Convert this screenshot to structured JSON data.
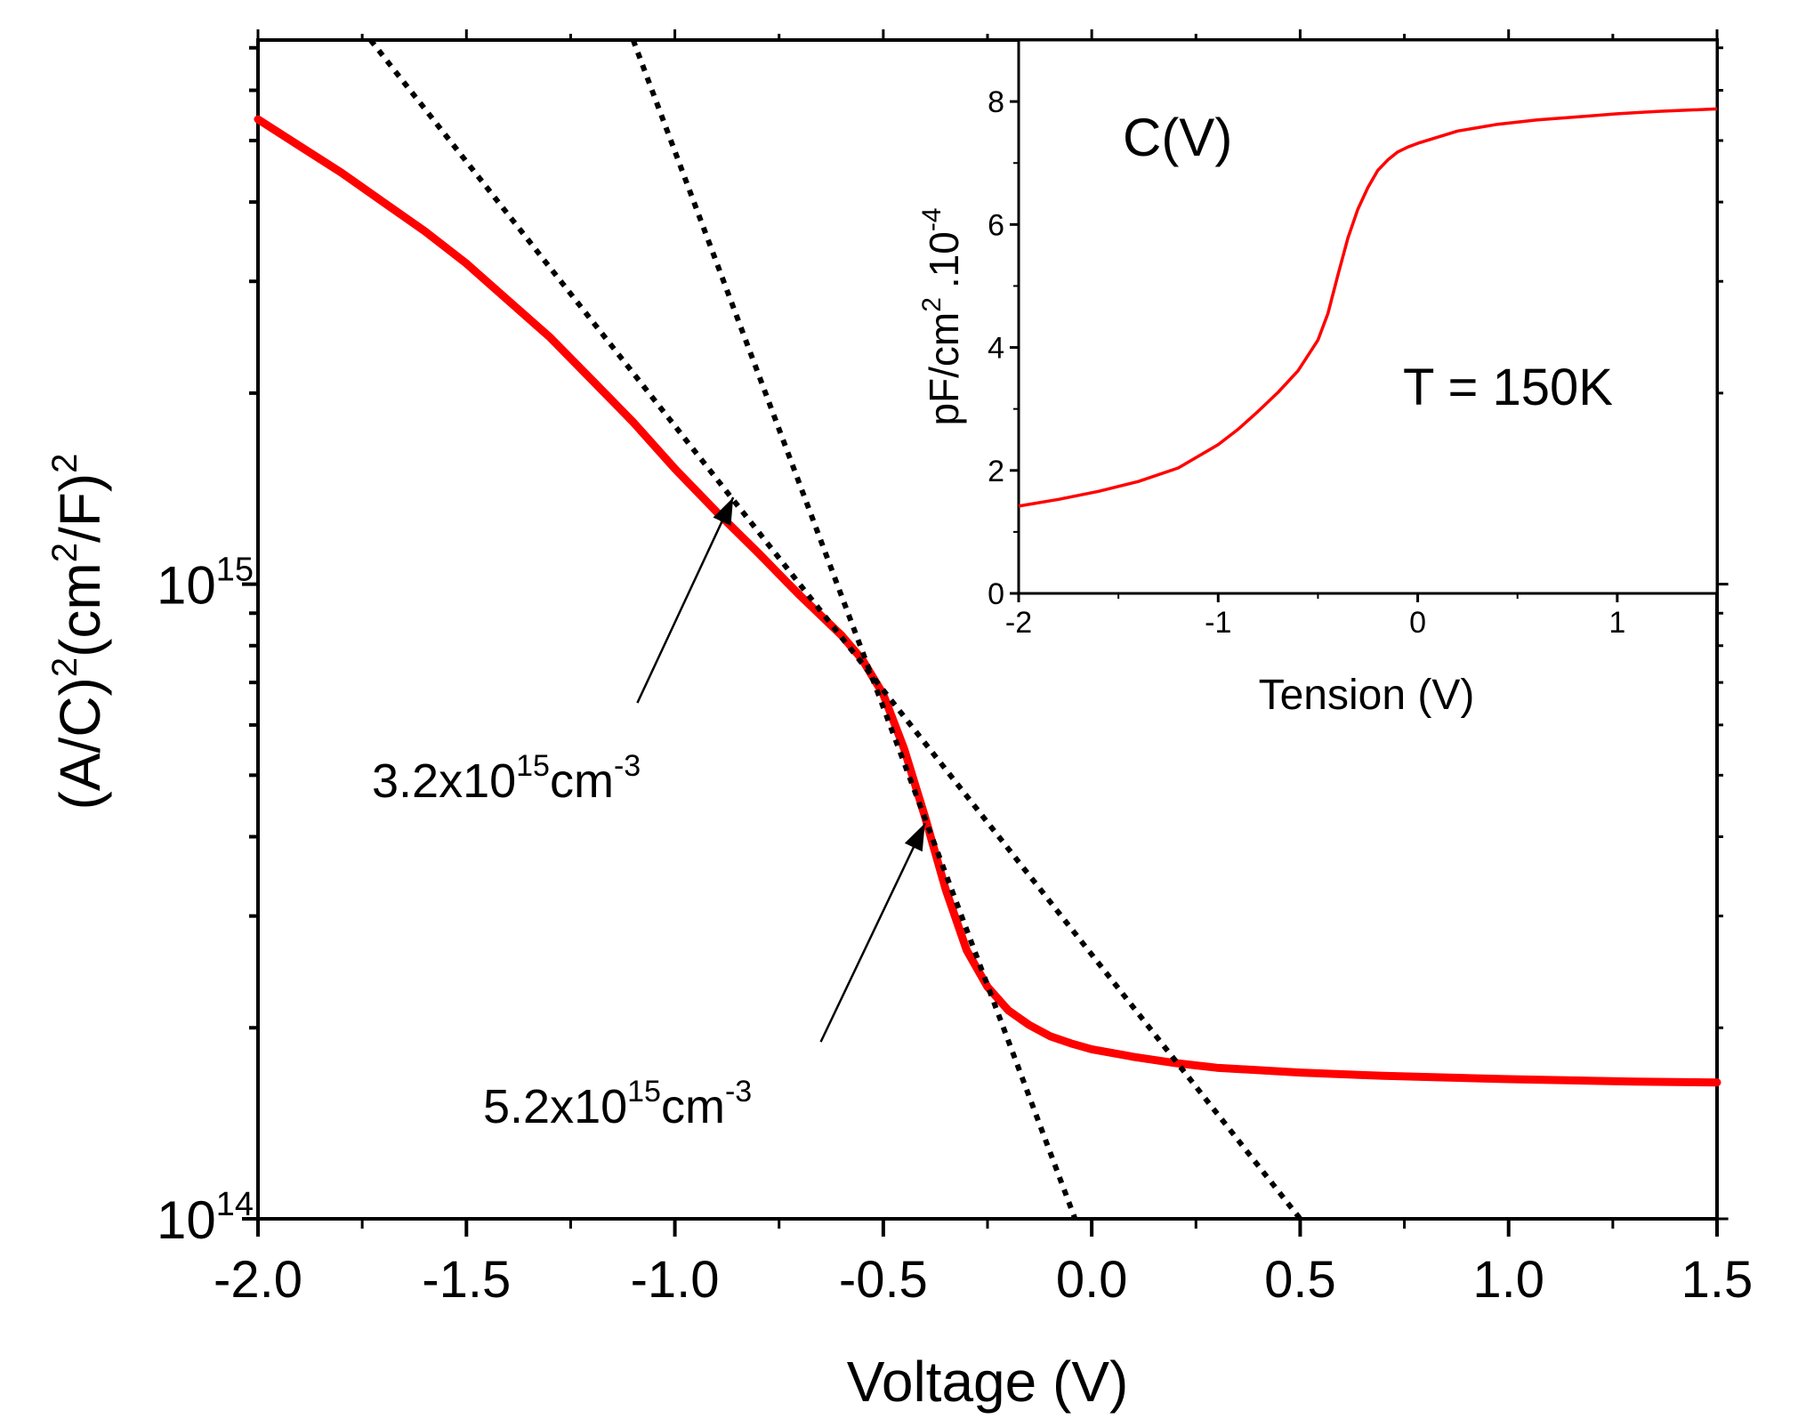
{
  "chart_data": [
    {
      "type": "line",
      "xlabel": "Voltage (V)",
      "ylabel": {
        "base": "(A/C)",
        "sup1": "2",
        "mid": "(cm",
        "sup2": "2",
        "mid2": "/F)",
        "sup3": "2"
      },
      "xlim": [
        -2.0,
        1.5
      ],
      "ylim": [
        100000000000000.0,
        7200000000000000.0
      ],
      "y_scale": "log",
      "x_ticks": [
        -2.0,
        -1.5,
        -1.0,
        -0.5,
        0.0,
        0.5,
        1.0,
        1.5
      ],
      "x_tick_labels": [
        "-2.0",
        "-1.5",
        "-1.0",
        "-0.5",
        "0.0",
        "0.5",
        "1.0",
        "1.5"
      ],
      "y_tick_labels": [
        {
          "value": 100000000000000.0,
          "base": "10",
          "exp": "14"
        },
        {
          "value": 1000000000000000.0,
          "base": "10",
          "exp": "15"
        }
      ],
      "colors": {
        "curve": "#ff0000",
        "fit": "#000000"
      },
      "series": [
        {
          "style": "solid",
          "color": "#ff0000",
          "x": [
            -2.0,
            -1.9,
            -1.8,
            -1.7,
            -1.6,
            -1.5,
            -1.4,
            -1.3,
            -1.2,
            -1.1,
            -1.0,
            -0.9,
            -0.8,
            -0.7,
            -0.6,
            -0.55,
            -0.5,
            -0.45,
            -0.4,
            -0.35,
            -0.3,
            -0.25,
            -0.2,
            -0.15,
            -0.1,
            -0.05,
            0.0,
            0.1,
            0.2,
            0.3,
            0.5,
            0.7,
            1.0,
            1.3,
            1.5
          ],
          "y": [
            5400000000000000.0,
            4900000000000000.0,
            4450000000000000.0,
            4000000000000000.0,
            3600000000000000.0,
            3200000000000000.0,
            2800000000000000.0,
            2450000000000000.0,
            2100000000000000.0,
            1800000000000000.0,
            1520000000000000.0,
            1300000000000000.0,
            1120000000000000.0,
            960000000000000.0,
            830000000000000.0,
            760000000000000.0,
            670000000000000.0,
            550000000000000.0,
            430000000000000.0,
            330000000000000.0,
            265000000000000.0,
            232000000000000.0,
            213000000000000.0,
            202000000000000.0,
            194000000000000.0,
            189000000000000.0,
            185000000000000.0,
            180000000000000.0,
            176000000000000.0,
            173000000000000.0,
            170000000000000.0,
            168000000000000.0,
            166000000000000.0,
            164500000000000.0,
            164000000000000.0
          ]
        },
        {
          "style": "dotted",
          "color": "#000000",
          "x": [
            -1.73,
            0.5
          ],
          "y": [
            7200000000000000.0,
            100000000000000.0
          ]
        },
        {
          "style": "dotted",
          "color": "#000000",
          "x": [
            -1.1,
            -0.04
          ],
          "y": [
            7200000000000000.0,
            100000000000000.0
          ]
        }
      ],
      "annotations": [
        {
          "base": "3.2x10",
          "sup": "15",
          "unit": "cm",
          "unitsup": "-3",
          "arrow_from": [
            -1.09,
            650000000000000.0
          ],
          "arrow_to": [
            -0.86,
            1370000000000000.0
          ]
        },
        {
          "base": "5.2x10",
          "sup": "15",
          "unit": "cm",
          "unitsup": "-3",
          "arrow_from": [
            -0.65,
            190000000000000.0
          ],
          "arrow_to": [
            -0.4,
            420000000000000.0
          ]
        }
      ]
    },
    {
      "type": "line",
      "title": "C(V)",
      "annotation": "T = 150K",
      "xlabel": "Tension (V)",
      "ylabel": {
        "base": "pF/cm",
        "sup1": "2",
        "mid": ".10",
        "sup2": "-4"
      },
      "xlim": [
        -2.0,
        1.5
      ],
      "ylim": [
        0,
        9
      ],
      "x_ticks": [
        -2,
        -1,
        0,
        1
      ],
      "x_tick_labels": [
        "-2",
        "-1",
        "0",
        "1"
      ],
      "y_ticks": [
        0,
        2,
        4,
        6,
        8
      ],
      "y_tick_labels": [
        "0",
        "2",
        "4",
        "6",
        "8"
      ],
      "series": [
        {
          "style": "solid",
          "color": "#ff0000",
          "x": [
            -2.0,
            -1.8,
            -1.6,
            -1.4,
            -1.2,
            -1.0,
            -0.9,
            -0.8,
            -0.7,
            -0.6,
            -0.5,
            -0.45,
            -0.4,
            -0.35,
            -0.3,
            -0.25,
            -0.2,
            -0.15,
            -0.1,
            -0.05,
            0.0,
            0.1,
            0.2,
            0.4,
            0.6,
            0.8,
            1.0,
            1.2,
            1.5
          ],
          "y": [
            1.42,
            1.53,
            1.66,
            1.82,
            2.04,
            2.42,
            2.67,
            2.96,
            3.27,
            3.62,
            4.12,
            4.55,
            5.18,
            5.78,
            6.25,
            6.6,
            6.88,
            7.05,
            7.18,
            7.26,
            7.32,
            7.42,
            7.52,
            7.63,
            7.7,
            7.75,
            7.8,
            7.84,
            7.88
          ]
        }
      ]
    }
  ]
}
